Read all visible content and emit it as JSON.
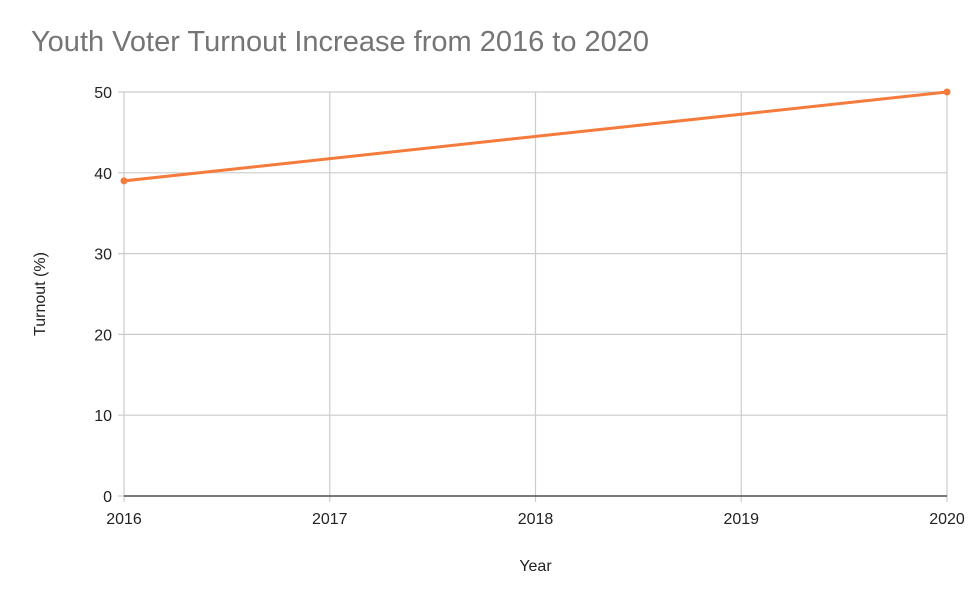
{
  "chart_data": {
    "type": "line",
    "title": "Youth Voter Turnout Increase from 2016 to 2020",
    "xlabel": "Year",
    "ylabel": "Turnout (%)",
    "x_ticks": [
      "2016",
      "2017",
      "2018",
      "2019",
      "2020"
    ],
    "y_ticks": [
      "0",
      "10",
      "20",
      "30",
      "40",
      "50"
    ],
    "xlim": [
      2016,
      2020
    ],
    "ylim": [
      0,
      50
    ],
    "grid": true,
    "legend": "none",
    "series": [
      {
        "x": [
          2016,
          2020
        ],
        "values": [
          39,
          50
        ],
        "color": "#f47b3c"
      }
    ]
  }
}
